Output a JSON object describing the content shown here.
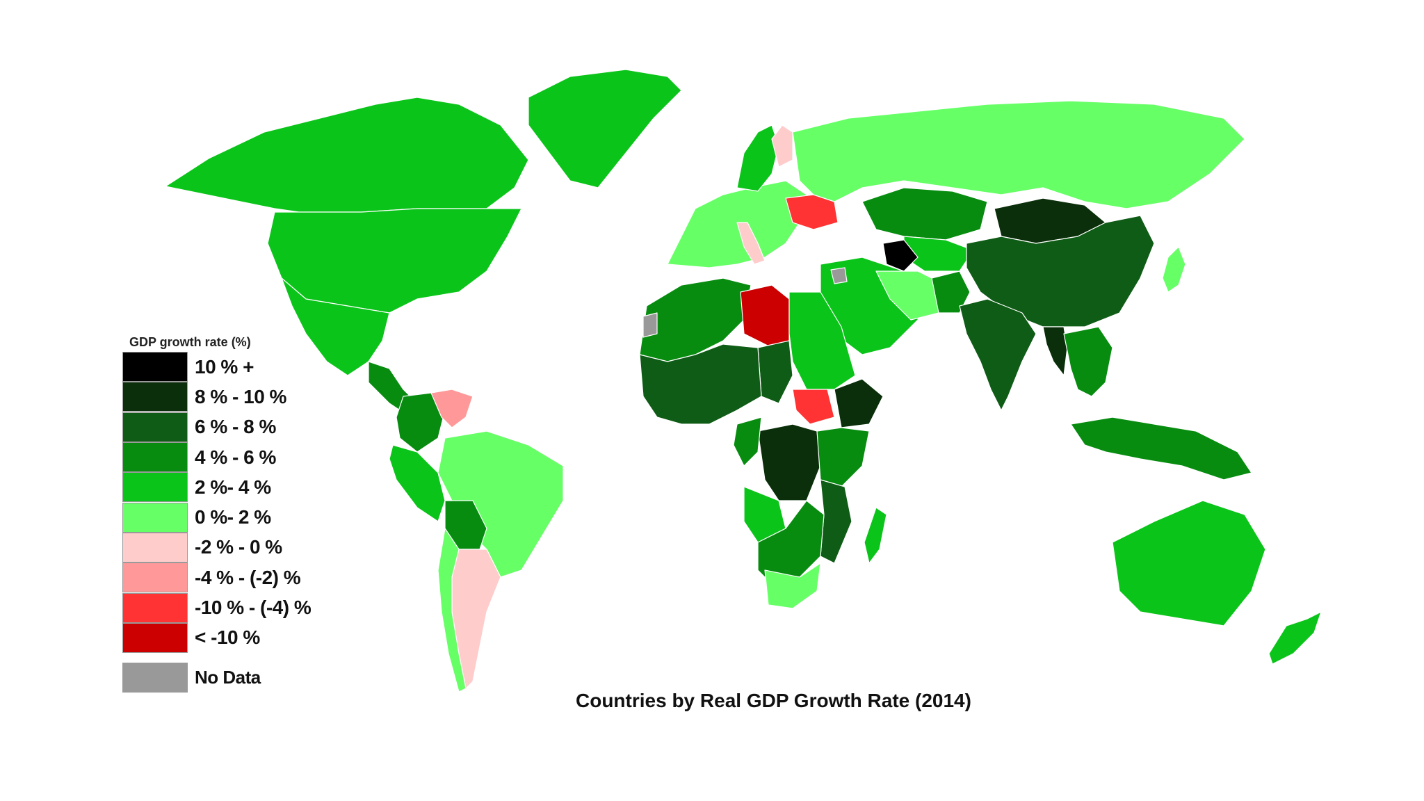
{
  "chart_data": {
    "type": "choropleth map",
    "title": "Countries by Real GDP Growth Rate (2014)",
    "legend_title": "GDP growth rate (%)",
    "legend_placement": "left",
    "legend": [
      {
        "label": "10 % +",
        "color": "#000000"
      },
      {
        "label": "8 % - 10 %",
        "color": "#0a2f0a"
      },
      {
        "label": "6 % - 8 %",
        "color": "#0f5c16"
      },
      {
        "label": "4 % - 6 %",
        "color": "#078c10"
      },
      {
        "label": "2 %- 4 %",
        "color": "#0bc41a"
      },
      {
        "label": "0 %- 2 %",
        "color": "#66ff66"
      },
      {
        "label": "-2 % - 0 %",
        "color": "#ffcccc"
      },
      {
        "label": "-4 % - (-2) %",
        "color": "#ff9999"
      },
      {
        "label": "-10 % - (-4) %",
        "color": "#ff3333"
      },
      {
        "label": "< -10 %",
        "color": "#cc0000"
      },
      {
        "label": "No Data",
        "color": "#999999"
      }
    ],
    "regions": [
      {
        "region": "Canada",
        "category": "2 %- 4 %"
      },
      {
        "region": "Greenland",
        "category": "2 %- 4 %"
      },
      {
        "region": "United States",
        "category": "2 %- 4 %"
      },
      {
        "region": "Mexico",
        "category": "2 %- 4 %"
      },
      {
        "region": "Central America",
        "category": "4 % - 6 %"
      },
      {
        "region": "Colombia",
        "category": "4 % - 6 %"
      },
      {
        "region": "Venezuela",
        "category": "-4 % - (-2) %"
      },
      {
        "region": "Peru",
        "category": "2 %- 4 %"
      },
      {
        "region": "Brazil",
        "category": "0 %- 2 %"
      },
      {
        "region": "Bolivia",
        "category": "4 % - 6 %"
      },
      {
        "region": "Argentina",
        "category": "-2 % - 0 %"
      },
      {
        "region": "Chile",
        "category": "0 %- 2 %"
      },
      {
        "region": "Europe",
        "category": "0 %- 2 %"
      },
      {
        "region": "Finland",
        "category": "-2 % - 0 %"
      },
      {
        "region": "Ukraine",
        "category": "-10 % - (-4) %"
      },
      {
        "region": "Italy",
        "category": "-2 % - 0 %"
      },
      {
        "region": "Russia",
        "category": "0 %- 2 %"
      },
      {
        "region": "Kazakhstan",
        "category": "4 % - 6 %"
      },
      {
        "region": "Turkmenistan",
        "category": "10 % +"
      },
      {
        "region": "Mongolia",
        "category": "8 % - 10 %"
      },
      {
        "region": "China",
        "category": "6 % - 8 %"
      },
      {
        "region": "India",
        "category": "6 % - 8 %"
      },
      {
        "region": "Myanmar",
        "category": "8 % - 10 %"
      },
      {
        "region": "Saudi Arabia",
        "category": "2 %- 4 %"
      },
      {
        "region": "Iran",
        "category": "0 %- 2 %"
      },
      {
        "region": "Syria",
        "category": "No Data"
      },
      {
        "region": "Libya",
        "category": "< -10 %"
      },
      {
        "region": "South Sudan",
        "category": "-10 % - (-4) %"
      },
      {
        "region": "Algeria",
        "category": "4 % - 6 %"
      },
      {
        "region": "Chad",
        "category": "6 % - 8 %"
      },
      {
        "region": "DR Congo",
        "category": "8 % - 10 %"
      },
      {
        "region": "Ethiopia",
        "category": "8 % - 10 %"
      },
      {
        "region": "Mozambique",
        "category": "6 % - 8 %"
      },
      {
        "region": "South Africa",
        "category": "0 %- 2 %"
      },
      {
        "region": "Madagascar",
        "category": "2 %- 4 %"
      },
      {
        "region": "Indonesia",
        "category": "4 % - 6 %"
      },
      {
        "region": "Australia",
        "category": "2 %- 4 %"
      },
      {
        "region": "New Zealand",
        "category": "2 %- 4 %"
      },
      {
        "region": "Japan",
        "category": "0 %- 2 %"
      }
    ]
  }
}
